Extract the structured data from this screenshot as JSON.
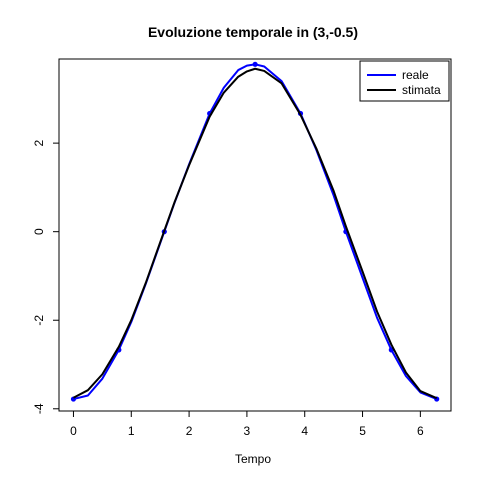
{
  "chart_data": {
    "type": "line",
    "title": "Evoluzione temporale in (3,-0.5)",
    "xlabel": "Tempo",
    "ylabel": "",
    "xlim": [
      -0.25,
      6.53
    ],
    "ylim": [
      -4.05,
      3.9
    ],
    "x_ticks": [
      0,
      1,
      2,
      3,
      4,
      5,
      6
    ],
    "y_ticks": [
      -4,
      -2,
      0,
      2
    ],
    "legend_position": "top-right",
    "grid": false,
    "series": [
      {
        "name": "reale",
        "color": "#0000ff",
        "markers": true,
        "x": [
          0.0,
          0.25,
          0.5,
          0.785,
          1.0,
          1.25,
          1.571,
          1.75,
          2.0,
          2.356,
          2.6,
          2.85,
          3.0,
          3.142,
          3.3,
          3.6,
          3.927,
          4.2,
          4.5,
          4.712,
          5.0,
          5.25,
          5.498,
          5.75,
          6.0,
          6.283
        ],
        "y": [
          -3.78,
          -3.7,
          -3.32,
          -2.67,
          -2.04,
          -1.18,
          0.0,
          0.66,
          1.52,
          2.67,
          3.25,
          3.65,
          3.75,
          3.78,
          3.73,
          3.4,
          2.67,
          1.85,
          0.82,
          0.0,
          -1.04,
          -1.94,
          -2.67,
          -3.26,
          -3.63,
          -3.78
        ],
        "marker_x": [
          0.0,
          0.785,
          1.571,
          2.356,
          3.142,
          3.927,
          4.712,
          5.498,
          6.283
        ],
        "marker_y": [
          -3.78,
          -2.67,
          0.0,
          2.67,
          3.78,
          2.67,
          0.0,
          -2.67,
          -3.78
        ]
      },
      {
        "name": "stimata",
        "color": "#000000",
        "markers": false,
        "x": [
          0.0,
          0.25,
          0.5,
          0.785,
          1.0,
          1.25,
          1.571,
          1.75,
          2.0,
          2.356,
          2.6,
          2.85,
          3.0,
          3.142,
          3.3,
          3.6,
          3.927,
          4.2,
          4.5,
          4.712,
          5.0,
          5.25,
          5.498,
          5.75,
          6.0,
          6.283
        ],
        "y": [
          -3.75,
          -3.58,
          -3.22,
          -2.6,
          -2.0,
          -1.16,
          0.02,
          0.67,
          1.5,
          2.6,
          3.14,
          3.5,
          3.62,
          3.68,
          3.63,
          3.35,
          2.64,
          1.88,
          0.92,
          0.12,
          -0.9,
          -1.8,
          -2.55,
          -3.18,
          -3.6,
          -3.76
        ]
      }
    ]
  }
}
